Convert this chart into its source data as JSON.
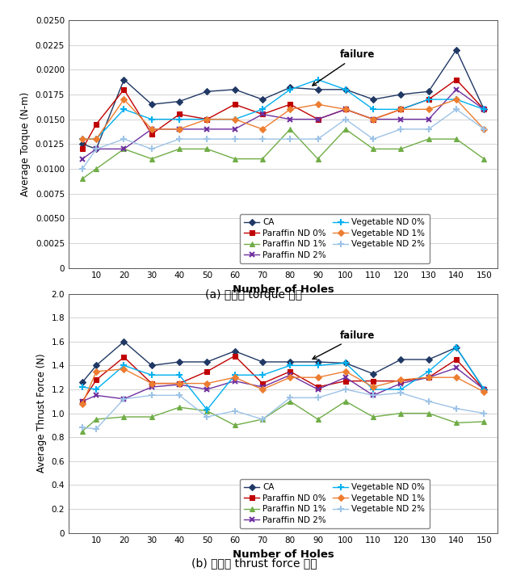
{
  "x": [
    5,
    10,
    20,
    30,
    40,
    50,
    60,
    70,
    80,
    90,
    100,
    110,
    120,
    130,
    140,
    150
  ],
  "torque": {
    "CA": [
      0.0125,
      0.012,
      0.019,
      0.0165,
      0.0168,
      0.0178,
      0.018,
      0.017,
      0.0182,
      0.018,
      0.018,
      0.017,
      0.0175,
      0.0178,
      0.022,
      0.016
    ],
    "Paraffin ND 0%": [
      0.012,
      0.0145,
      0.018,
      0.0135,
      0.0155,
      0.015,
      0.0165,
      0.0155,
      0.0165,
      0.015,
      0.016,
      0.015,
      0.016,
      0.017,
      0.019,
      0.016
    ],
    "Paraffin ND 1%": [
      0.009,
      0.01,
      0.012,
      0.011,
      0.012,
      0.012,
      0.011,
      0.011,
      0.014,
      0.011,
      0.014,
      0.012,
      0.012,
      0.013,
      0.013,
      0.011
    ],
    "Paraffin ND 2%": [
      0.011,
      0.012,
      0.012,
      0.014,
      0.014,
      0.014,
      0.014,
      0.0155,
      0.015,
      0.015,
      0.016,
      0.015,
      0.015,
      0.015,
      0.018,
      0.016
    ],
    "Vegetable ND 0%": [
      0.013,
      0.013,
      0.016,
      0.015,
      0.015,
      0.015,
      0.015,
      0.016,
      0.018,
      0.019,
      0.018,
      0.016,
      0.016,
      0.017,
      0.017,
      0.016
    ],
    "Vegetable ND 1%": [
      0.013,
      0.013,
      0.017,
      0.014,
      0.014,
      0.015,
      0.015,
      0.014,
      0.016,
      0.0165,
      0.016,
      0.015,
      0.016,
      0.016,
      0.017,
      0.014
    ],
    "Vegetable ND 2%": [
      0.01,
      0.012,
      0.013,
      0.012,
      0.013,
      0.013,
      0.013,
      0.013,
      0.013,
      0.013,
      0.015,
      0.013,
      0.014,
      0.014,
      0.016,
      0.014
    ]
  },
  "thrust": {
    "CA": [
      1.26,
      1.4,
      1.6,
      1.4,
      1.43,
      1.43,
      1.52,
      1.43,
      1.43,
      1.43,
      1.42,
      1.33,
      1.45,
      1.45,
      1.55,
      1.2
    ],
    "Paraffin ND 0%": [
      1.1,
      1.28,
      1.47,
      1.25,
      1.25,
      1.35,
      1.48,
      1.25,
      1.35,
      1.22,
      1.27,
      1.27,
      1.27,
      1.3,
      1.45,
      1.2
    ],
    "Paraffin ND 1%": [
      0.85,
      0.95,
      0.97,
      0.97,
      1.05,
      1.02,
      0.9,
      0.95,
      1.1,
      0.95,
      1.1,
      0.97,
      1.0,
      1.0,
      0.92,
      0.93
    ],
    "Paraffin ND 2%": [
      1.1,
      1.15,
      1.12,
      1.22,
      1.24,
      1.2,
      1.27,
      1.22,
      1.32,
      1.2,
      1.3,
      1.15,
      1.25,
      1.3,
      1.38,
      1.2
    ],
    "Vegetable ND 0%": [
      1.22,
      1.2,
      1.4,
      1.32,
      1.32,
      1.03,
      1.32,
      1.32,
      1.4,
      1.4,
      1.42,
      1.2,
      1.2,
      1.35,
      1.55,
      1.2
    ],
    "Vegetable ND 1%": [
      1.08,
      1.35,
      1.37,
      1.25,
      1.25,
      1.25,
      1.3,
      1.2,
      1.3,
      1.3,
      1.35,
      1.22,
      1.28,
      1.3,
      1.3,
      1.18
    ],
    "Vegetable ND 2%": [
      0.88,
      0.87,
      1.12,
      1.15,
      1.15,
      0.97,
      1.02,
      0.95,
      1.13,
      1.13,
      1.2,
      1.15,
      1.17,
      1.1,
      1.04,
      1.0
    ]
  },
  "colors": {
    "CA": "#203864",
    "Paraffin ND 0%": "#c00000",
    "Paraffin ND 1%": "#70ad47",
    "Paraffin ND 2%": "#7030a0",
    "Vegetable ND 0%": "#00b0f0",
    "Vegetable ND 1%": "#ed7d31",
    "Vegetable ND 2%": "#9dc3e6"
  },
  "ylabel_top": "Average Torque (N-m)",
  "ylabel_bot": "Average Thrust Force (N)",
  "xlabel": "Number of Holes",
  "caption_top": "(a) 드릴링 torque 결과",
  "caption_bot": "(b) 드릴링 thrust force 결과",
  "torque_ylim": [
    0,
    0.025
  ],
  "torque_yticks": [
    0,
    0.0025,
    0.005,
    0.0075,
    0.01,
    0.0125,
    0.015,
    0.0175,
    0.02,
    0.0225,
    0.025
  ],
  "thrust_ylim": [
    0,
    2.0
  ],
  "thrust_yticks": [
    0,
    0.2,
    0.4,
    0.6,
    0.8,
    1.0,
    1.2,
    1.4,
    1.6,
    1.8,
    2.0
  ]
}
